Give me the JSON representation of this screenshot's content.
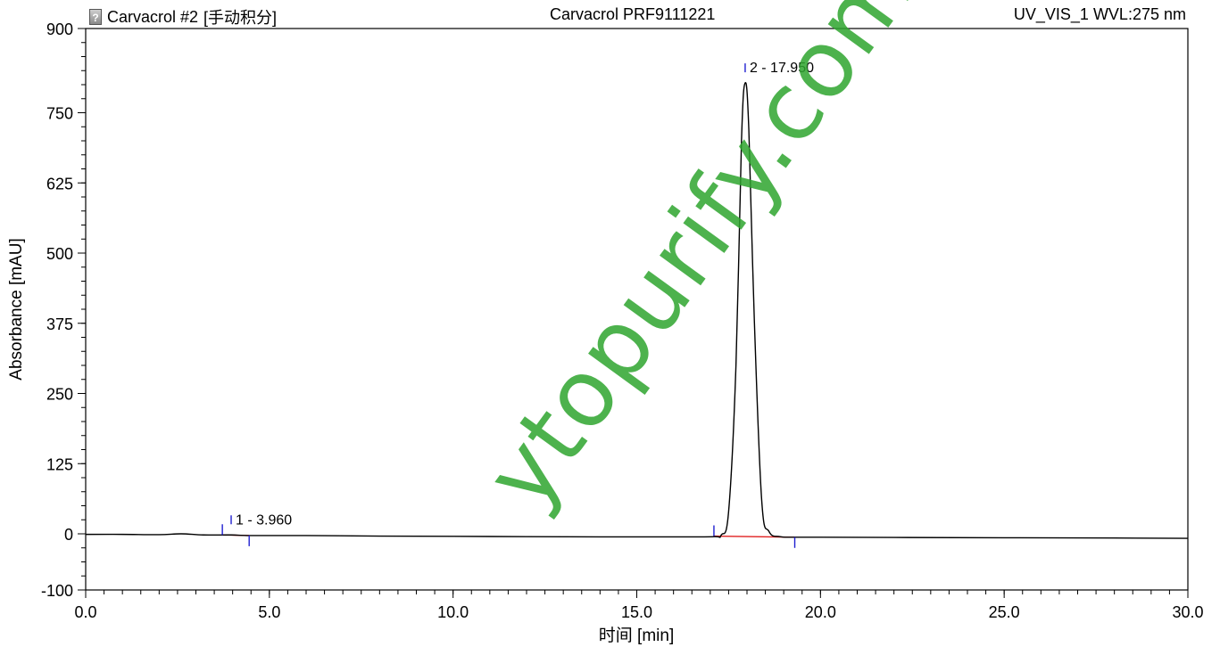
{
  "header": {
    "left_title": "Carvacrol #2",
    "left_mode": "[手动积分]",
    "center_title": "Carvacrol PRF9111221",
    "right_title": "UV_VIS_1 WVL:275 nm",
    "icon": "document-question-icon"
  },
  "watermark": "ytopurify.com",
  "chart_data": {
    "type": "line",
    "xlabel": "时间 [min]",
    "ylabel": "Absorbance [mAU]",
    "xlim": [
      0,
      30
    ],
    "ylim": [
      -100,
      900
    ],
    "xticks": [
      "0.0",
      "5.0",
      "10.0",
      "15.0",
      "20.0",
      "25.0",
      "30.0"
    ],
    "yticks": [
      "-100",
      "0",
      "125",
      "250",
      "375",
      "500",
      "625",
      "750",
      "900"
    ],
    "grid": false,
    "colors": {
      "trace": "#000000",
      "baseline": "#e02020",
      "marker": "#1f1fd0"
    },
    "trace": {
      "x": [
        0,
        1,
        2,
        2.6,
        3.2,
        3.96,
        4.5,
        6,
        8,
        10,
        12,
        14,
        16,
        17.1,
        17.3,
        17.5,
        17.7,
        17.85,
        17.95,
        18.05,
        18.2,
        18.4,
        18.6,
        18.9,
        19.3,
        20,
        22,
        25,
        28,
        30
      ],
      "y": [
        -1,
        -1,
        -1.5,
        0,
        -2,
        -2,
        -3,
        -3,
        -4,
        -4.5,
        -5,
        -5.5,
        -5.5,
        -5,
        -2,
        40,
        300,
        700,
        803,
        720,
        380,
        60,
        4,
        -5,
        -6,
        -6,
        -6.5,
        -7,
        -7.5,
        -8
      ]
    },
    "peaks": [
      {
        "label": "1 - 3.960",
        "rt": 3.96,
        "apex": -2,
        "start": 3.72,
        "end": 4.45
      },
      {
        "label": "2 - 17.950",
        "rt": 17.95,
        "apex": 803,
        "start": 17.1,
        "end": 19.3
      }
    ]
  }
}
